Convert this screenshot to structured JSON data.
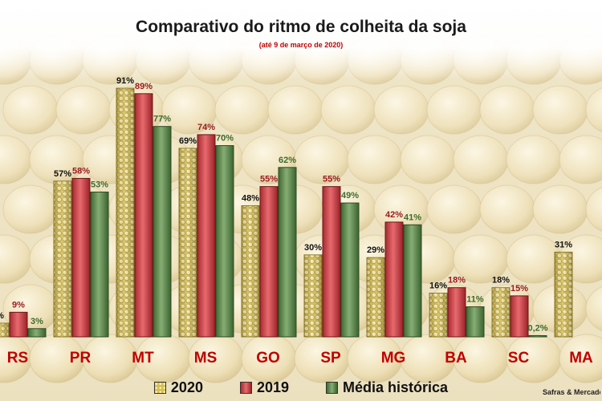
{
  "chart_data": {
    "type": "bar",
    "title": "Comparativo do ritmo de colheita da soja",
    "subtitle": "(até 9 de  março de 2020)",
    "categories": [
      "RS",
      "PR",
      "MT",
      "MS",
      "GO",
      "SP",
      "MG",
      "BA",
      "SC",
      "MA"
    ],
    "series": [
      {
        "name": "2020",
        "values": [
          5,
          57,
          91,
          69,
          48,
          30,
          29,
          16,
          18,
          31
        ],
        "labels": [
          "%",
          "57%",
          "91%",
          "69%",
          "48%",
          "30%",
          "29%",
          "16%",
          "18%",
          "31%"
        ],
        "color": "#d9c25a",
        "label_color": "#111111"
      },
      {
        "name": "2019",
        "values": [
          9,
          58,
          89,
          74,
          55,
          55,
          42,
          18,
          15,
          null
        ],
        "labels": [
          "9%",
          "58%",
          "89%",
          "74%",
          "55%",
          "55%",
          "42%",
          "18%",
          "15%",
          ""
        ],
        "color": "#c8444a",
        "label_color": "#9a1c22"
      },
      {
        "name": "Média histórica",
        "values": [
          3,
          53,
          77,
          70,
          62,
          49,
          41,
          11,
          0.2,
          null
        ],
        "labels": [
          "3%",
          "53%",
          "77%",
          "70%",
          "62%",
          "49%",
          "41%",
          "11%",
          "0,2%",
          ""
        ],
        "color": "#5d8a4e",
        "label_color": "#3d6b2e"
      }
    ],
    "ylim": [
      0,
      100
    ],
    "grid": false,
    "legend_position": "bottom",
    "category_label_color": "#c00000",
    "source": "Safras & Mercado"
  }
}
